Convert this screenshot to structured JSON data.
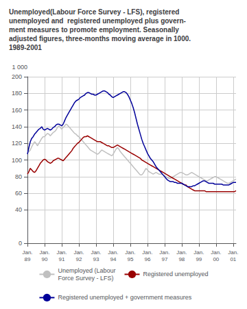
{
  "chart_data": {
    "type": "line",
    "title": "Unemployed(Labour Force Survey - LFS), registered\nunemployed and  registered unemployed plus govern-\nment measures to promote employment. Seasonally\nadjusted figures, three-months moving average in 1000.\n1989-2001",
    "y_label": "1 000",
    "categories": [
      "Jan.\n89",
      null,
      null,
      null,
      null,
      null,
      null,
      null,
      null,
      null,
      null,
      null,
      "Jan.\n90",
      null,
      null,
      null,
      null,
      null,
      null,
      null,
      null,
      null,
      null,
      null,
      "Jan.\n91",
      null,
      null,
      null,
      null,
      null,
      null,
      null,
      null,
      null,
      null,
      null,
      "Jan.\n92",
      null,
      null,
      null,
      null,
      null,
      null,
      null,
      null,
      null,
      null,
      null,
      "Jan.\n93",
      null,
      null,
      null,
      null,
      null,
      null,
      null,
      null,
      null,
      null,
      null,
      "Jan.\n94",
      null,
      null,
      null,
      null,
      null,
      null,
      null,
      null,
      null,
      null,
      null,
      "Jan.\n95",
      null,
      null,
      null,
      null,
      null,
      null,
      null,
      null,
      null,
      null,
      null,
      "Jan.\n96",
      null,
      null,
      null,
      null,
      null,
      null,
      null,
      null,
      null,
      null,
      null,
      "Jan.\n97",
      null,
      null,
      null,
      null,
      null,
      null,
      null,
      null,
      null,
      null,
      null,
      "Jan.\n98",
      null,
      null,
      null,
      null,
      null,
      null,
      null,
      null,
      null,
      null,
      null,
      "Jan.\n99",
      null,
      null,
      null,
      null,
      null,
      null,
      null,
      null,
      null,
      null,
      null,
      "Jan.\n00",
      null,
      null,
      null,
      null,
      null,
      null,
      null,
      null,
      null,
      null,
      null,
      "Jan.\n01",
      null,
      null
    ],
    "ylim": [
      0,
      200
    ],
    "yticks": [
      0,
      40,
      60,
      80,
      100,
      120,
      140,
      160,
      180,
      200
    ],
    "grid": true,
    "legend": "bottom",
    "series": [
      {
        "name": "Unemployed (Labour\nForce Survey - LFS)",
        "color": "#c0c0c0",
        "values": [
          108,
          110,
          112,
          116,
          119,
          122,
          120,
          117,
          120,
          123,
          126,
          128,
          128,
          130,
          132,
          131,
          129,
          131,
          133,
          134,
          136,
          139,
          141,
          139,
          137,
          139,
          141,
          143,
          142,
          140,
          138,
          136,
          134,
          132,
          131,
          129,
          128,
          126,
          124,
          122,
          120,
          118,
          116,
          114,
          112,
          111,
          110,
          109,
          108,
          107,
          108,
          110,
          112,
          111,
          110,
          109,
          108,
          107,
          106,
          105,
          107,
          110,
          113,
          115,
          113,
          110,
          108,
          106,
          104,
          102,
          100,
          98,
          96,
          94,
          92,
          90,
          88,
          86,
          84,
          82,
          82,
          84,
          87,
          90,
          88,
          86,
          85,
          84,
          83,
          84,
          85,
          84,
          83,
          83,
          83,
          82,
          81,
          80,
          79,
          78,
          78,
          79,
          80,
          81,
          82,
          83,
          84,
          85,
          85,
          84,
          83,
          82,
          82,
          83,
          84,
          85,
          84,
          83,
          82,
          81,
          80,
          79,
          78,
          77,
          76,
          75,
          75,
          76,
          77,
          78,
          79,
          80,
          80,
          79,
          78,
          77,
          76,
          75,
          74,
          73,
          72,
          72,
          73,
          74,
          75,
          76,
          77
        ]
      },
      {
        "name": "Registered unemployed",
        "color": "#990000",
        "values": [
          83,
          86,
          90,
          88,
          86,
          85,
          87,
          90,
          93,
          96,
          98,
          100,
          101,
          100,
          98,
          97,
          96,
          97,
          99,
          100,
          101,
          102,
          102,
          101,
          100,
          99,
          101,
          103,
          105,
          107,
          109,
          111,
          114,
          116,
          118,
          120,
          121,
          123,
          125,
          127,
          128,
          128,
          129,
          128,
          127,
          126,
          125,
          124,
          123,
          122,
          122,
          122,
          121,
          120,
          119,
          118,
          117,
          117,
          116,
          115,
          115,
          116,
          117,
          118,
          117,
          116,
          115,
          114,
          113,
          112,
          111,
          110,
          109,
          108,
          107,
          106,
          105,
          104,
          103,
          102,
          100,
          99,
          98,
          97,
          96,
          95,
          94,
          93,
          92,
          91,
          90,
          89,
          88,
          87,
          86,
          85,
          84,
          83,
          82,
          81,
          80,
          79,
          78,
          77,
          76,
          75,
          74,
          73,
          72,
          71,
          70,
          70,
          68,
          67,
          66,
          65,
          64,
          63,
          63,
          63,
          63,
          63,
          63,
          63,
          63,
          62,
          62,
          62,
          62,
          62,
          62,
          62,
          62,
          62,
          62,
          62,
          62,
          62,
          62,
          62,
          62,
          62,
          62,
          62,
          62,
          62,
          63
        ]
      },
      {
        "name": "Registered unemployed + government measures",
        "color": "#000099",
        "values": [
          107,
          115,
          122,
          126,
          128,
          131,
          133,
          135,
          137,
          138,
          140,
          137,
          136,
          137,
          138,
          137,
          136,
          137,
          139,
          140,
          142,
          143,
          143,
          142,
          141,
          143,
          147,
          151,
          154,
          157,
          160,
          163,
          166,
          169,
          171,
          172,
          173,
          175,
          176,
          177,
          178,
          180,
          181,
          181,
          180,
          179,
          179,
          178,
          178,
          179,
          180,
          181,
          182,
          183,
          183,
          182,
          181,
          179,
          178,
          176,
          175,
          176,
          177,
          178,
          179,
          180,
          181,
          182,
          182,
          181,
          179,
          176,
          172,
          168,
          163,
          157,
          150,
          143,
          137,
          131,
          125,
          120,
          116,
          112,
          108,
          105,
          102,
          100,
          98,
          95,
          92,
          90,
          88,
          86,
          84,
          82,
          80,
          78,
          76,
          75,
          74,
          74,
          74,
          73,
          73,
          72,
          72,
          72,
          72,
          71,
          70,
          69,
          68,
          68,
          68,
          68,
          69,
          69,
          70,
          71,
          72,
          73,
          74,
          75,
          75,
          74,
          73,
          72,
          72,
          72,
          72,
          71,
          71,
          71,
          71,
          71,
          71,
          70,
          70,
          70,
          70,
          70,
          71,
          72,
          73,
          73,
          73
        ]
      }
    ]
  }
}
